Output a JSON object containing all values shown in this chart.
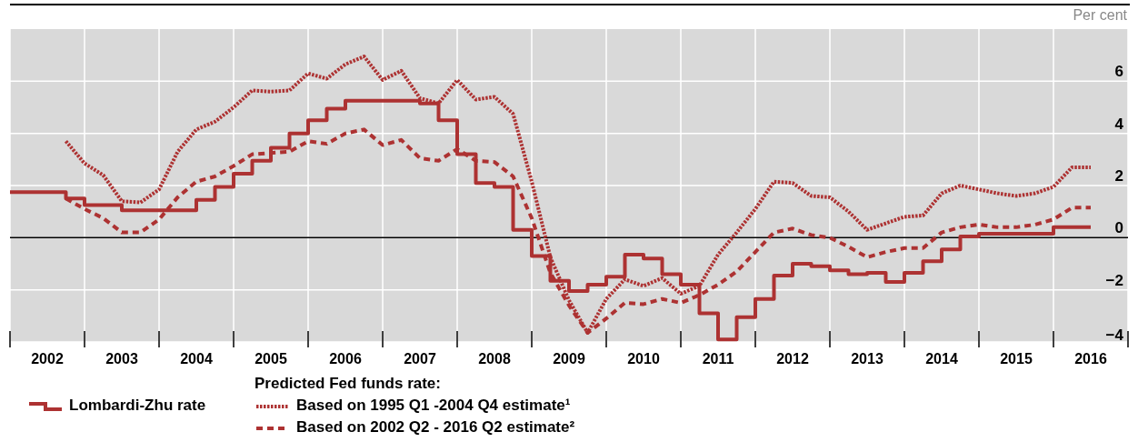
{
  "chart_data": {
    "type": "line",
    "ylabel": "Per cent",
    "legend_title": "Predicted Fed funds rate:",
    "xlim": [
      2002,
      2017
    ],
    "xticks": [
      {
        "value": 2002,
        "label": null
      },
      {
        "value": 2002.5,
        "label": "2002"
      },
      {
        "value": 2003,
        "label": null
      },
      {
        "value": 2003.5,
        "label": "2003"
      },
      {
        "value": 2004,
        "label": null
      },
      {
        "value": 2004.5,
        "label": "2004"
      },
      {
        "value": 2005,
        "label": null
      },
      {
        "value": 2005.5,
        "label": "2005"
      },
      {
        "value": 2006,
        "label": null
      },
      {
        "value": 2006.5,
        "label": "2006"
      },
      {
        "value": 2007,
        "label": null
      },
      {
        "value": 2007.5,
        "label": "2007"
      },
      {
        "value": 2008,
        "label": null
      },
      {
        "value": 2008.5,
        "label": "2008"
      },
      {
        "value": 2009,
        "label": null
      },
      {
        "value": 2009.5,
        "label": "2009"
      },
      {
        "value": 2010,
        "label": null
      },
      {
        "value": 2010.5,
        "label": "2010"
      },
      {
        "value": 2011,
        "label": null
      },
      {
        "value": 2011.5,
        "label": "2011"
      },
      {
        "value": 2012,
        "label": null
      },
      {
        "value": 2012.5,
        "label": "2012"
      },
      {
        "value": 2013,
        "label": null
      },
      {
        "value": 2013.5,
        "label": "2013"
      },
      {
        "value": 2014,
        "label": null
      },
      {
        "value": 2014.5,
        "label": "2014"
      },
      {
        "value": 2015,
        "label": null
      },
      {
        "value": 2015.5,
        "label": "2015"
      },
      {
        "value": 2016,
        "label": null
      },
      {
        "value": 2016.5,
        "label": "2016"
      },
      {
        "value": 2017,
        "label": null
      }
    ],
    "ylim": [
      -4,
      8
    ],
    "yticks": [
      -4,
      -2,
      0,
      2,
      4,
      6
    ],
    "grid": true,
    "legend": "bottom",
    "ref_lines": [
      {
        "axis": "y",
        "value": 0,
        "color": "#000000"
      }
    ],
    "series": [
      {
        "name": "Lombardi-Zhu rate",
        "type": "step",
        "line_style": "solid",
        "color": "#ad3232",
        "x": [
          2002,
          2002.25,
          2002.5,
          2002.75,
          2003,
          2003.25,
          2003.5,
          2003.75,
          2004,
          2004.25,
          2004.5,
          2004.75,
          2005,
          2005.25,
          2005.5,
          2005.75,
          2006,
          2006.25,
          2006.5,
          2006.75,
          2007,
          2007.25,
          2007.5,
          2007.75,
          2008,
          2008.25,
          2008.5,
          2008.75,
          2009,
          2009.25,
          2009.5,
          2009.75,
          2010,
          2010.25,
          2010.5,
          2010.75,
          2011,
          2011.25,
          2011.5,
          2011.75,
          2012,
          2012.25,
          2012.5,
          2012.75,
          2013,
          2013.25,
          2013.5,
          2013.75,
          2014,
          2014.25,
          2014.5,
          2014.75,
          2015,
          2015.25,
          2015.5,
          2015.75,
          2016,
          2016.25,
          2016.5
        ],
        "values": [
          1.75,
          1.75,
          1.75,
          1.5,
          1.25,
          1.25,
          1.05,
          1.05,
          1.05,
          1.05,
          1.45,
          1.95,
          2.45,
          2.95,
          3.45,
          4.0,
          4.5,
          4.95,
          5.25,
          5.25,
          5.25,
          5.25,
          5.15,
          4.5,
          3.2,
          2.1,
          1.95,
          0.3,
          -0.7,
          -1.65,
          -2.05,
          -1.8,
          -1.5,
          -0.65,
          -0.8,
          -1.4,
          -1.8,
          -2.9,
          -3.9,
          -3.05,
          -2.35,
          -1.45,
          -1.0,
          -1.1,
          -1.25,
          -1.4,
          -1.35,
          -1.7,
          -1.35,
          -0.9,
          -0.45,
          0.05,
          0.15,
          0.15,
          0.15,
          0.15,
          0.4,
          0.4,
          0.4
        ]
      },
      {
        "name": "Based on 1995 Q1 -2004 Q4 estimate¹",
        "type": "line",
        "line_style": "dotted",
        "color": "#ad3232",
        "x": [
          2002.75,
          2003,
          2003.25,
          2003.5,
          2003.75,
          2004,
          2004.25,
          2004.5,
          2004.75,
          2005,
          2005.25,
          2005.5,
          2005.75,
          2006,
          2006.25,
          2006.5,
          2006.75,
          2007,
          2007.25,
          2007.5,
          2007.75,
          2008,
          2008.25,
          2008.5,
          2008.75,
          2009,
          2009.25,
          2009.5,
          2009.75,
          2010,
          2010.25,
          2010.5,
          2010.75,
          2011,
          2011.25,
          2011.5,
          2011.75,
          2012,
          2012.25,
          2012.5,
          2012.75,
          2013,
          2013.25,
          2013.5,
          2013.75,
          2014,
          2014.25,
          2014.5,
          2014.75,
          2015,
          2015.25,
          2015.5,
          2015.75,
          2016,
          2016.25,
          2016.5
        ],
        "values": [
          3.7,
          2.85,
          2.4,
          1.4,
          1.35,
          1.85,
          3.3,
          4.15,
          4.45,
          5.0,
          5.65,
          5.6,
          5.65,
          6.3,
          6.1,
          6.65,
          6.95,
          6.05,
          6.4,
          5.35,
          5.15,
          6.05,
          5.3,
          5.4,
          4.75,
          2.15,
          -0.75,
          -2.4,
          -3.65,
          -2.35,
          -1.6,
          -1.85,
          -1.55,
          -2.15,
          -1.85,
          -0.65,
          0.2,
          1.1,
          2.15,
          2.1,
          1.6,
          1.55,
          1.0,
          0.3,
          0.55,
          0.8,
          0.85,
          1.7,
          2.0,
          1.85,
          1.7,
          1.6,
          1.7,
          1.95,
          2.7,
          2.7
        ]
      },
      {
        "name": "Based on 2002 Q2 - 2016 Q2 estimate²",
        "type": "line",
        "line_style": "dashed",
        "color": "#ad3232",
        "x": [
          2002.75,
          2003,
          2003.25,
          2003.5,
          2003.75,
          2004,
          2004.25,
          2004.5,
          2004.75,
          2005,
          2005.25,
          2005.5,
          2005.75,
          2006,
          2006.25,
          2006.5,
          2006.75,
          2007,
          2007.25,
          2007.5,
          2007.75,
          2008,
          2008.25,
          2008.5,
          2008.75,
          2009,
          2009.25,
          2009.5,
          2009.75,
          2010,
          2010.25,
          2010.5,
          2010.75,
          2011,
          2011.25,
          2011.5,
          2011.75,
          2012,
          2012.25,
          2012.5,
          2012.75,
          2013,
          2013.25,
          2013.5,
          2013.75,
          2014,
          2014.25,
          2014.5,
          2014.75,
          2015,
          2015.25,
          2015.5,
          2015.75,
          2016,
          2016.25,
          2016.5
        ],
        "values": [
          1.5,
          1.1,
          0.75,
          0.2,
          0.2,
          0.7,
          1.55,
          2.15,
          2.35,
          2.75,
          3.2,
          3.25,
          3.3,
          3.7,
          3.6,
          4.0,
          4.15,
          3.55,
          3.75,
          3.05,
          2.95,
          3.4,
          2.95,
          2.9,
          2.35,
          0.75,
          -1.35,
          -2.6,
          -3.65,
          -3.1,
          -2.5,
          -2.55,
          -2.35,
          -2.5,
          -2.2,
          -1.8,
          -1.3,
          -0.55,
          0.2,
          0.35,
          0.1,
          0.0,
          -0.35,
          -0.75,
          -0.55,
          -0.4,
          -0.4,
          0.2,
          0.4,
          0.5,
          0.4,
          0.4,
          0.5,
          0.7,
          1.15,
          1.15
        ]
      }
    ]
  }
}
